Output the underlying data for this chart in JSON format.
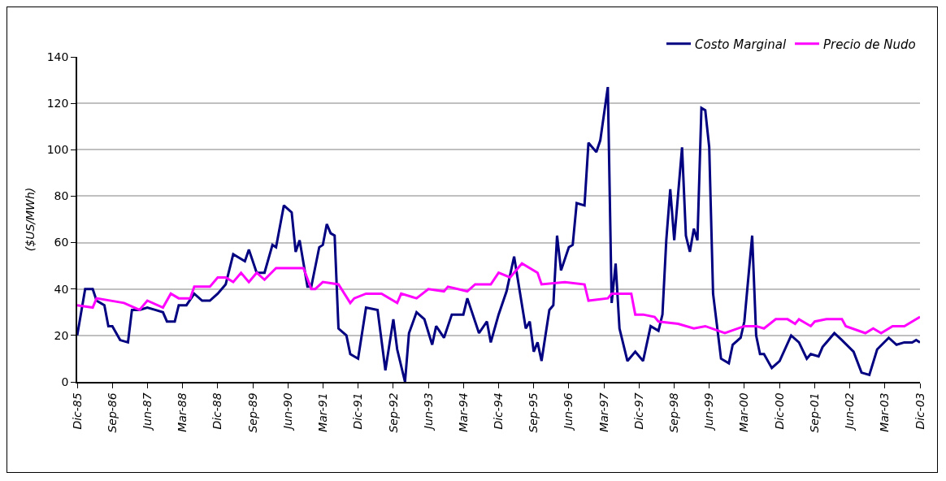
{
  "chart_data": {
    "type": "line",
    "ylabel": "($US/MWh)",
    "legend": "top right",
    "grid": "y",
    "line_style": "solid",
    "marker": "none",
    "xlim": [
      "1985-12",
      "2003-12"
    ],
    "xticks": [
      {
        "value": "1985-12",
        "label": "Dic-85"
      },
      {
        "value": "1986-09",
        "label": "Sep-86"
      },
      {
        "value": "1987-06",
        "label": "Jun-87"
      },
      {
        "value": "1988-03",
        "label": "Mar-88"
      },
      {
        "value": "1988-12",
        "label": "Dic-88"
      },
      {
        "value": "1989-09",
        "label": "Sep-89"
      },
      {
        "value": "1990-06",
        "label": "Jun-90"
      },
      {
        "value": "1991-03",
        "label": "Mar-91"
      },
      {
        "value": "1991-12",
        "label": "Dic-91"
      },
      {
        "value": "1992-09",
        "label": "Sep-92"
      },
      {
        "value": "1993-06",
        "label": "Jun-93"
      },
      {
        "value": "1994-03",
        "label": "Mar-94"
      },
      {
        "value": "1994-12",
        "label": "Dic-94"
      },
      {
        "value": "1995-09",
        "label": "Sep-95"
      },
      {
        "value": "1996-06",
        "label": "Jun-96"
      },
      {
        "value": "1997-03",
        "label": "Mar-97"
      },
      {
        "value": "1997-12",
        "label": "Dic-97"
      },
      {
        "value": "1998-09",
        "label": "Sep-98"
      },
      {
        "value": "1999-06",
        "label": "Jun-99"
      },
      {
        "value": "2000-03",
        "label": "Mar-00"
      },
      {
        "value": "2000-12",
        "label": "Dic-00"
      },
      {
        "value": "2001-09",
        "label": "Sep-01"
      },
      {
        "value": "2002-06",
        "label": "Jun-02"
      },
      {
        "value": "2003-03",
        "label": "Mar-03"
      },
      {
        "value": "2003-12",
        "label": "Dic-03"
      }
    ],
    "ylim": [
      0,
      140
    ],
    "yticks": [
      0,
      20,
      40,
      60,
      80,
      100,
      120,
      140
    ],
    "series": [
      {
        "name": "Costo Marginal",
        "color": "#000080",
        "x": [
          "1985-12",
          "1986-02",
          "1986-04",
          "1986-05",
          "1986-07",
          "1986-08",
          "1986-09",
          "1986-11",
          "1987-01",
          "1987-02",
          "1987-04",
          "1987-06",
          "1987-08",
          "1987-10",
          "1987-11",
          "1988-01",
          "1988-02",
          "1988-04",
          "1988-06",
          "1988-08",
          "1988-10",
          "1988-12",
          "1989-02",
          "1989-04",
          "1989-05",
          "1989-07",
          "1989-08",
          "1989-10",
          "1989-12",
          "1990-02",
          "1990-03",
          "1990-05",
          "1990-07",
          "1990-08",
          "1990-09",
          "1990-11",
          "1990-12",
          "1991-02",
          "1991-03",
          "1991-04",
          "1991-05",
          "1991-06",
          "1991-07",
          "1991-09",
          "1991-10",
          "1991-12",
          "1992-02",
          "1992-05",
          "1992-07",
          "1992-09",
          "1992-10",
          "1992-12",
          "1993-01",
          "1993-03",
          "1993-05",
          "1993-07",
          "1993-08",
          "1993-10",
          "1993-12",
          "1994-03",
          "1994-04",
          "1994-07",
          "1994-09",
          "1994-10",
          "1994-12",
          "1995-02",
          "1995-04",
          "1995-07",
          "1995-08",
          "1995-09",
          "1995-10",
          "1995-11",
          "1996-01",
          "1996-02",
          "1996-03",
          "1996-04",
          "1996-06",
          "1996-07",
          "1996-08",
          "1996-10",
          "1996-11",
          "1997-01",
          "1997-02",
          "1997-04",
          "1997-05",
          "1997-06",
          "1997-07",
          "1997-09",
          "1997-11",
          "1998-01",
          "1998-03",
          "1998-05",
          "1998-06",
          "1998-07",
          "1998-08",
          "1998-09",
          "1998-11",
          "1998-12",
          "1999-01",
          "1999-02",
          "1999-03",
          "1999-04",
          "1999-05",
          "1999-06",
          "1999-07",
          "1999-09",
          "1999-11",
          "1999-12",
          "2000-02",
          "2000-03",
          "2000-05",
          "2000-06",
          "2000-07",
          "2000-08",
          "2000-10",
          "2000-12",
          "2001-03",
          "2001-05",
          "2001-07",
          "2001-08",
          "2001-10",
          "2001-11",
          "2002-02",
          "2002-04",
          "2002-07",
          "2002-09",
          "2002-11",
          "2003-01",
          "2003-04",
          "2003-06",
          "2003-08",
          "2003-10",
          "2003-11",
          "2003-12"
        ],
        "values": [
          20,
          40,
          40,
          35,
          33,
          24,
          24,
          18,
          17,
          31,
          31,
          32,
          31,
          30,
          26,
          26,
          33,
          33,
          38,
          35,
          35,
          38,
          42,
          55,
          54,
          52,
          57,
          47,
          47,
          59,
          58,
          76,
          73,
          56,
          61,
          41,
          41,
          58,
          59,
          68,
          64,
          63,
          23,
          20,
          12,
          10,
          32,
          31,
          5,
          27,
          14,
          0,
          21,
          30,
          27,
          16,
          24,
          19,
          29,
          29,
          36,
          21,
          26,
          17,
          29,
          39,
          54,
          23,
          26,
          13,
          17,
          9,
          31,
          33,
          63,
          48,
          58,
          59,
          77,
          76,
          103,
          99,
          104,
          127,
          34,
          51,
          23,
          9,
          13,
          9,
          24,
          22,
          29,
          61,
          83,
          61,
          101,
          63,
          56,
          66,
          61,
          118,
          117,
          101,
          38,
          10,
          8,
          16,
          19,
          26,
          63,
          20,
          12,
          12,
          6,
          9,
          20,
          17,
          10,
          12,
          11,
          15,
          21,
          18,
          13,
          4,
          3,
          14,
          19,
          16,
          17,
          17,
          18,
          17
        ]
      },
      {
        "name": "Precio de Nudo",
        "color": "#ff00ff",
        "x": [
          "1985-12",
          "1986-04",
          "1986-05",
          "1986-12",
          "1987-04",
          "1987-06",
          "1987-10",
          "1987-12",
          "1988-02",
          "1988-05",
          "1988-06",
          "1988-10",
          "1988-12",
          "1989-02",
          "1989-04",
          "1989-06",
          "1989-08",
          "1989-10",
          "1989-12",
          "1990-03",
          "1990-08",
          "1990-10",
          "1990-12",
          "1991-01",
          "1991-03",
          "1991-07",
          "1991-10",
          "1991-11",
          "1992-02",
          "1992-06",
          "1992-10",
          "1992-11",
          "1993-03",
          "1993-06",
          "1993-10",
          "1993-11",
          "1994-04",
          "1994-06",
          "1994-10",
          "1994-12",
          "1995-03",
          "1995-06",
          "1995-10",
          "1995-11",
          "1996-05",
          "1996-10",
          "1996-11",
          "1997-04",
          "1997-05",
          "1997-10",
          "1997-11",
          "1998-01",
          "1998-04",
          "1998-05",
          "1998-10",
          "1999-02",
          "1999-05",
          "1999-10",
          "2000-03",
          "2000-06",
          "2000-08",
          "2000-11",
          "2001-02",
          "2001-04",
          "2001-05",
          "2001-08",
          "2001-09",
          "2001-12",
          "2002-04",
          "2002-05",
          "2002-10",
          "2002-12",
          "2003-02",
          "2003-05",
          "2003-08",
          "2003-12"
        ],
        "values": [
          33,
          32,
          36,
          34,
          31,
          35,
          32,
          38,
          36,
          36,
          41,
          41,
          45,
          45,
          43,
          47,
          43,
          47,
          44,
          49,
          49,
          49,
          40,
          40,
          43,
          42,
          34,
          36,
          38,
          38,
          34,
          38,
          36,
          40,
          39,
          41,
          39,
          42,
          42,
          47,
          45,
          51,
          47,
          42,
          43,
          42,
          35,
          36,
          38,
          38,
          29,
          29,
          28,
          26,
          25,
          23,
          24,
          21,
          24,
          24,
          23,
          27,
          27,
          25,
          27,
          24,
          26,
          27,
          27,
          24,
          21,
          23,
          21,
          24,
          24,
          28
        ]
      }
    ]
  }
}
